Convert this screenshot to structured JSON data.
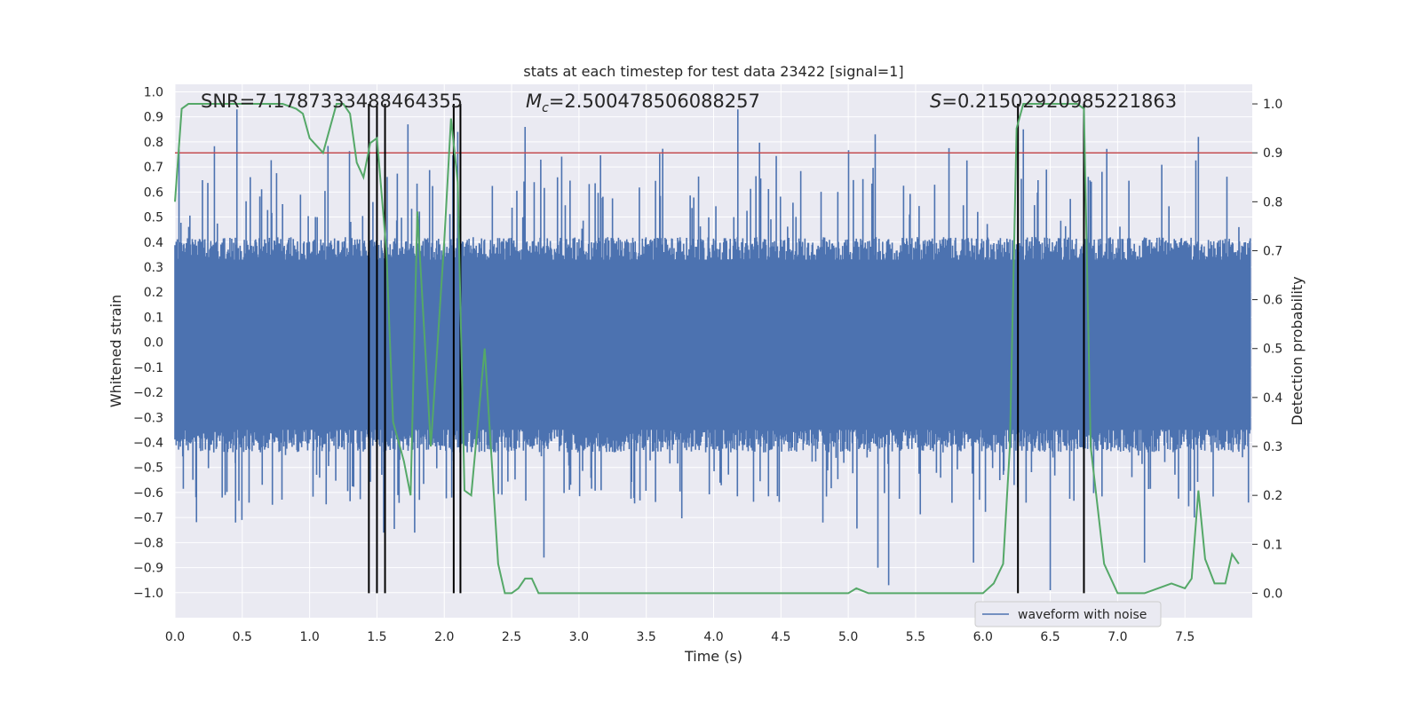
{
  "chart_data": {
    "type": "line",
    "title": "stats at each timestep for test data 23422 [signal=1]",
    "xlabel": "Time (s)",
    "ylabel": "Whitened strain",
    "y2label": "Detection probability",
    "xlim": [
      0.0,
      8.0
    ],
    "ylim": [
      -1.1,
      1.03
    ],
    "y2lim": [
      -0.05,
      1.04
    ],
    "x_ticks": [
      "0.0",
      "0.5",
      "1.0",
      "1.5",
      "2.0",
      "2.5",
      "3.0",
      "3.5",
      "4.0",
      "4.5",
      "5.0",
      "5.5",
      "6.0",
      "6.5",
      "7.0",
      "7.5"
    ],
    "y_ticks": [
      "1.0",
      "0.9",
      "0.8",
      "0.7",
      "0.6",
      "0.5",
      "0.4",
      "0.3",
      "0.2",
      "0.1",
      "0.0",
      "-0.1",
      "-0.2",
      "-0.3",
      "-0.4",
      "-0.5",
      "-0.6",
      "-0.7",
      "-0.8",
      "-0.9",
      "-1.0"
    ],
    "y2_ticks": [
      "1.0",
      "0.9",
      "0.8",
      "0.7",
      "0.6",
      "0.5",
      "0.4",
      "0.3",
      "0.2",
      "0.1",
      "0.0"
    ],
    "grid": true,
    "legend_position": "lower-right",
    "colors": {
      "background": "#eaeaf2",
      "grid": "#ffffff",
      "waveform": "#4c72b0",
      "probability": "#55a868",
      "threshold": "#c44e52",
      "markers": "#000000"
    },
    "annotations": {
      "snr_prefix": "SNR=",
      "snr_value": "7.1787333488464355",
      "mc_symbol": "M",
      "mc_sub": "c",
      "mc_value": "=2.500478506088257",
      "s_symbol": "S",
      "s_value": "=0.21502920985221863"
    },
    "series": [
      {
        "name": "waveform with noise",
        "axis": "left",
        "description_values": "dense noise, band roughly -0.4 to 0.4 with spikes to about +/-0.95",
        "envelope_upper_peaks": [
          [
            0.03,
            0.77
          ],
          [
            0.46,
            0.93
          ],
          [
            1.47,
            0.56
          ],
          [
            1.73,
            0.87
          ],
          [
            2.1,
            0.84
          ],
          [
            2.6,
            0.86
          ],
          [
            4.18,
            0.93
          ],
          [
            5.2,
            0.83
          ],
          [
            6.3,
            0.85
          ],
          [
            7.6,
            0.82
          ]
        ],
        "envelope_lower_peaks": [
          [
            0.45,
            -0.72
          ],
          [
            1.55,
            -0.76
          ],
          [
            1.78,
            -0.76
          ],
          [
            2.74,
            -0.86
          ],
          [
            5.22,
            -0.9
          ],
          [
            5.3,
            -0.97
          ],
          [
            5.93,
            -0.88
          ],
          [
            6.5,
            -0.99
          ],
          [
            7.2,
            -0.88
          ],
          [
            7.57,
            -0.7
          ]
        ]
      },
      {
        "name": "Detection probability",
        "axis": "right",
        "x": [
          0.0,
          0.05,
          0.1,
          0.2,
          0.4,
          0.6,
          0.8,
          0.9,
          0.95,
          1.0,
          1.1,
          1.2,
          1.25,
          1.3,
          1.35,
          1.4,
          1.45,
          1.5,
          1.57,
          1.62,
          1.7,
          1.75,
          1.8,
          1.9,
          2.0,
          2.05,
          2.1,
          2.15,
          2.2,
          2.3,
          2.4,
          2.45,
          2.5,
          2.55,
          2.6,
          2.65,
          2.7,
          2.8,
          3.0,
          3.4,
          3.7,
          4.0,
          4.5,
          5.0,
          5.06,
          5.15,
          5.3,
          5.5,
          5.8,
          6.0,
          6.08,
          6.15,
          6.2,
          6.25,
          6.3,
          6.5,
          6.7,
          6.75,
          6.8,
          6.9,
          7.0,
          7.2,
          7.3,
          7.4,
          7.5,
          7.55,
          7.6,
          7.65,
          7.72,
          7.8,
          7.85,
          7.9
        ],
        "y": [
          0.8,
          0.99,
          1.0,
          1.0,
          1.0,
          1.0,
          1.0,
          0.99,
          0.98,
          0.93,
          0.9,
          1.0,
          1.0,
          0.98,
          0.88,
          0.85,
          0.92,
          0.93,
          0.7,
          0.35,
          0.27,
          0.2,
          0.78,
          0.3,
          0.72,
          0.97,
          0.84,
          0.21,
          0.2,
          0.5,
          0.06,
          0.0,
          0.0,
          0.01,
          0.03,
          0.03,
          0.0,
          0.0,
          0.0,
          0.0,
          0.0,
          0.0,
          0.0,
          0.0,
          0.01,
          0.0,
          0.0,
          0.0,
          0.0,
          0.0,
          0.02,
          0.06,
          0.3,
          0.95,
          1.0,
          1.0,
          1.0,
          0.99,
          0.3,
          0.06,
          0.0,
          0.0,
          0.01,
          0.02,
          0.01,
          0.03,
          0.21,
          0.07,
          0.02,
          0.02,
          0.08,
          0.06
        ]
      },
      {
        "name": "threshold",
        "axis": "right",
        "y": 0.9
      }
    ],
    "vertical_markers": [
      1.44,
      1.5,
      1.56,
      2.07,
      2.12,
      6.26,
      6.75
    ],
    "legend": [
      "waveform with noise"
    ]
  }
}
